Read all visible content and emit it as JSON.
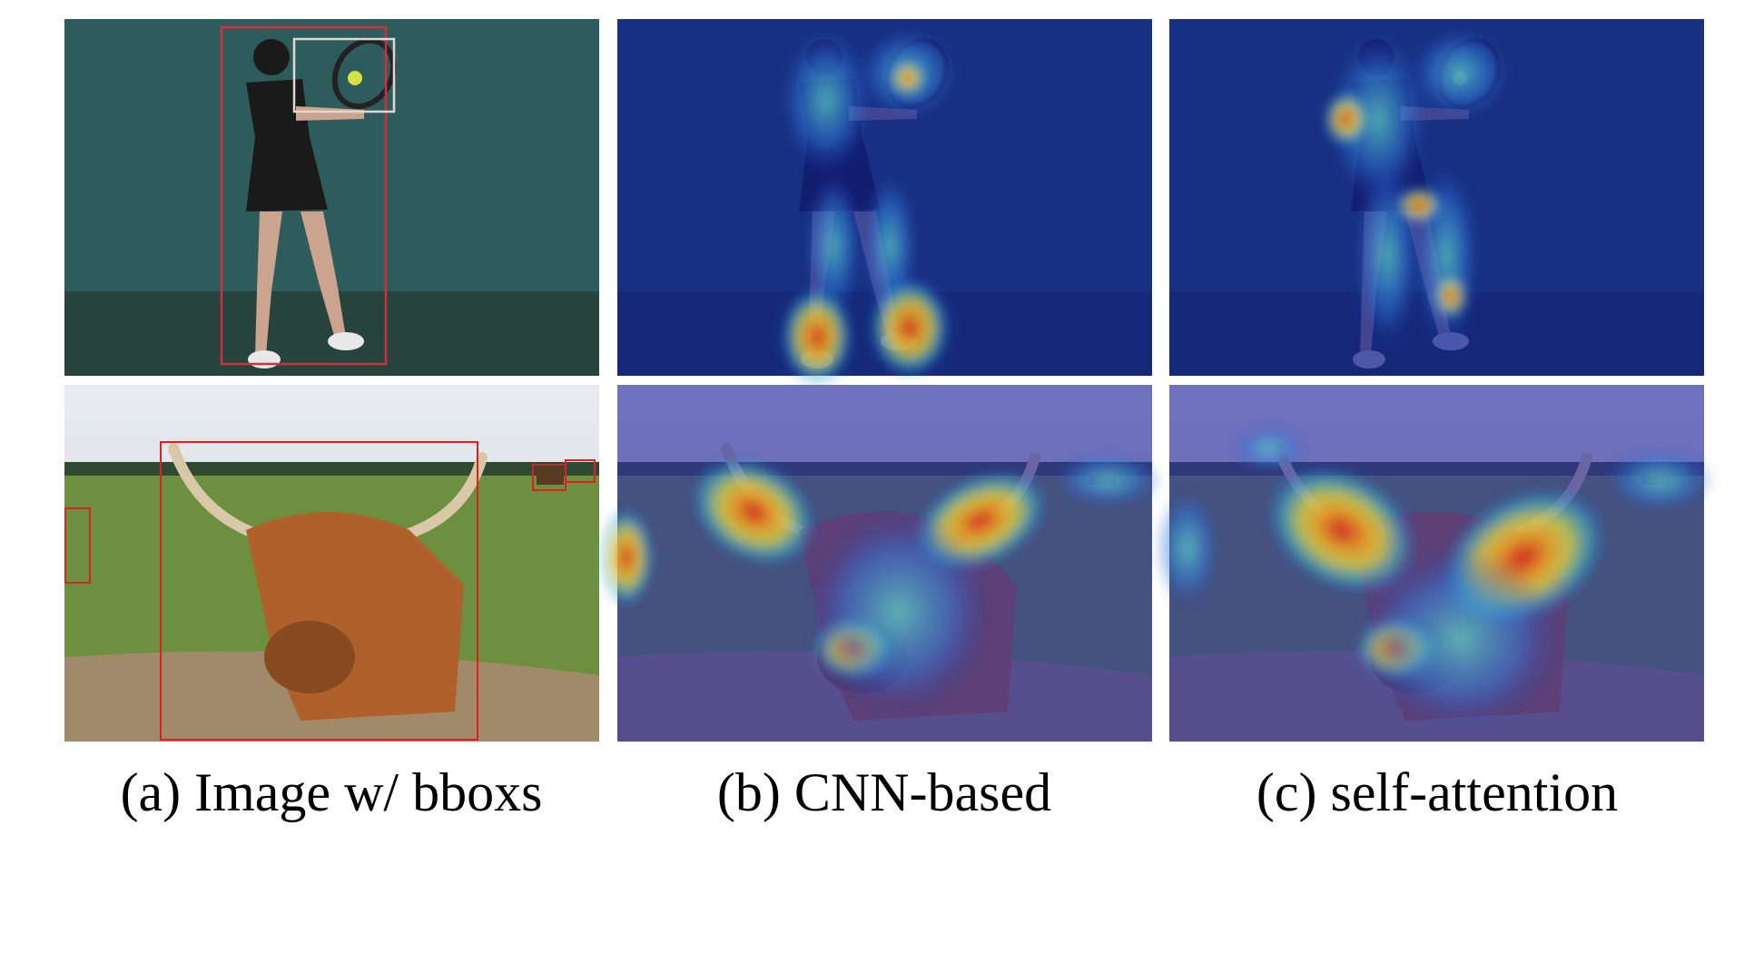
{
  "captions": [
    "(a) Image w/ bboxs",
    "(b) CNN-based",
    "(c) self-attention"
  ]
}
